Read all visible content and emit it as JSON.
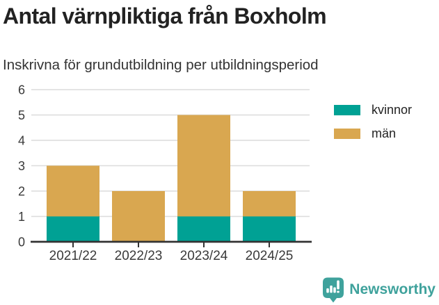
{
  "title": "Antal värnpliktiga från Boxholm",
  "subtitle": "Inskrivna för grundutbildning per utbildningsperiod",
  "colors": {
    "kvinnor": "#00A194",
    "man": "#D9A750",
    "brand": "#3FA29C",
    "title_text": "#222222",
    "axis_text": "#3a3a3a",
    "gridline": "#dcdcdc",
    "axis_line": "#333333"
  },
  "chart_data": {
    "type": "bar",
    "stacked": true,
    "title": "Antal värnpliktiga från Boxholm",
    "subtitle": "Inskrivna för grundutbildning per utbildningsperiod",
    "categories": [
      "2021/22",
      "2022/23",
      "2023/24",
      "2024/25"
    ],
    "series": [
      {
        "name": "kvinnor",
        "color": "#00A194",
        "values": [
          1,
          0,
          1,
          1
        ]
      },
      {
        "name": "män",
        "color": "#D9A750",
        "values": [
          2,
          2,
          4,
          1
        ]
      }
    ],
    "totals": [
      3,
      2,
      5,
      2
    ],
    "xlabel": "",
    "ylabel": "",
    "ylim": [
      0,
      6
    ],
    "yticks": [
      0,
      1,
      2,
      3,
      4,
      5,
      6
    ],
    "grid": true,
    "legend_position": "right"
  },
  "legend": {
    "items": [
      {
        "label": "kvinnor"
      },
      {
        "label": "män"
      }
    ]
  },
  "footer": {
    "brand_name": "Newsworthy",
    "logo_icon": "bar-chart-speech-bubble-icon"
  }
}
